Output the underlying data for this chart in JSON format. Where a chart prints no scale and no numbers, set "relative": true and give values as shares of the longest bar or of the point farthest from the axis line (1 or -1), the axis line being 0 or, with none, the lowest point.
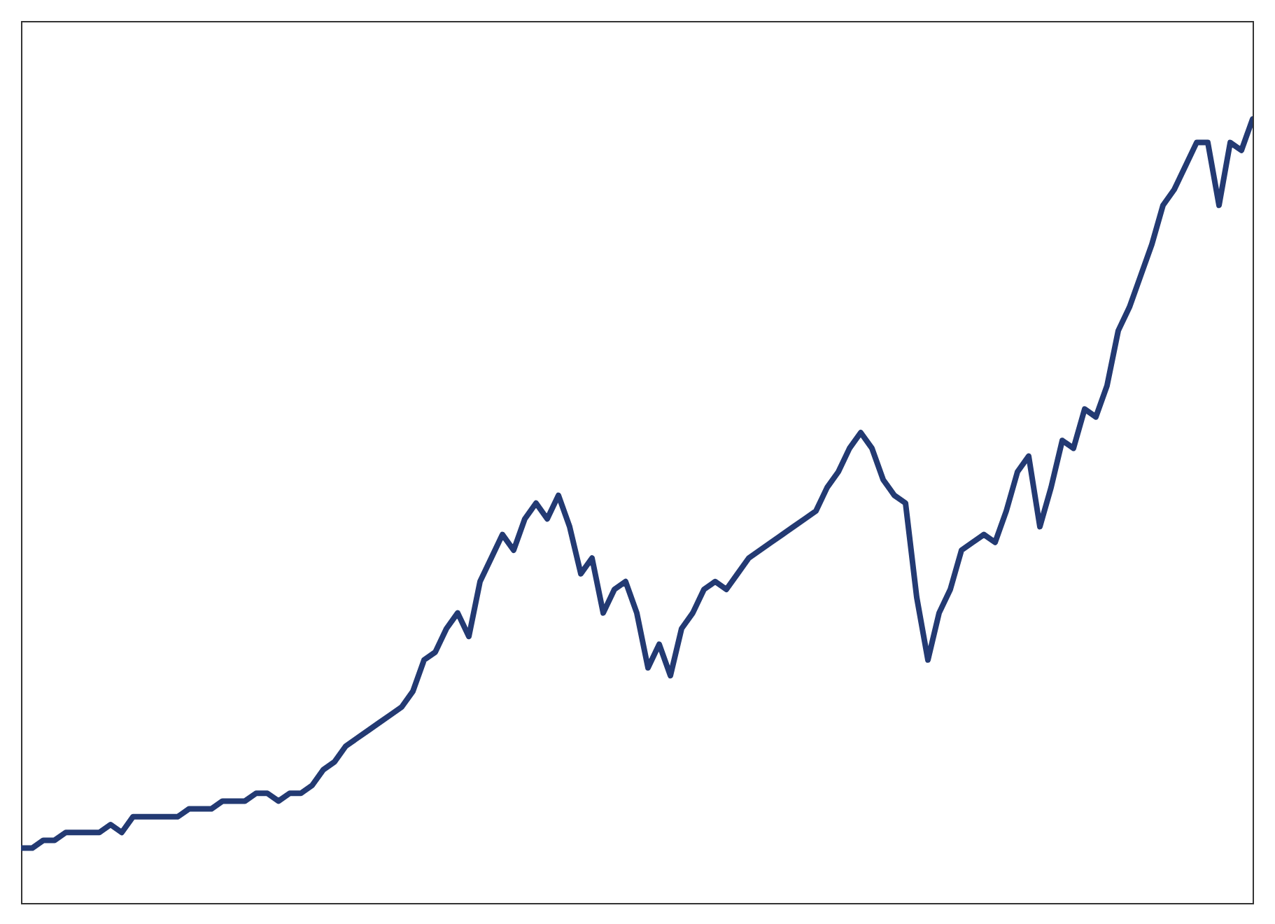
{
  "chart_data": {
    "type": "line",
    "relative": true,
    "categories": [
      null,
      null,
      null,
      null,
      null,
      null,
      null,
      null,
      null,
      null,
      null,
      null,
      null,
      null,
      null,
      null,
      null,
      null,
      null,
      null,
      null,
      null,
      null,
      null,
      null,
      null,
      null,
      null,
      null,
      null,
      null,
      null,
      null,
      null,
      null,
      null,
      null,
      null,
      null,
      null,
      null,
      null,
      null,
      null,
      null,
      null,
      null,
      null,
      null,
      null,
      null,
      null,
      null,
      null,
      null,
      null,
      null,
      null,
      null,
      null,
      null,
      null,
      null,
      null,
      null,
      null,
      null,
      null,
      null,
      null,
      null,
      null,
      null,
      null,
      null,
      null,
      null,
      null,
      null,
      null,
      null,
      null,
      null,
      null,
      null,
      null,
      null,
      null,
      null,
      null,
      null,
      null,
      null,
      null,
      null,
      null,
      null,
      null,
      null,
      null,
      null,
      null,
      null,
      null,
      null,
      null,
      null,
      null,
      null,
      null,
      null
    ],
    "series": [
      {
        "color": "#233a73",
        "values": [
          0.07,
          0.07,
          0.08,
          0.08,
          0.09,
          0.09,
          0.09,
          0.09,
          0.1,
          0.09,
          0.11,
          0.11,
          0.11,
          0.11,
          0.11,
          0.12,
          0.12,
          0.12,
          0.13,
          0.13,
          0.13,
          0.14,
          0.14,
          0.13,
          0.14,
          0.14,
          0.15,
          0.17,
          0.18,
          0.2,
          0.21,
          0.22,
          0.23,
          0.24,
          0.25,
          0.27,
          0.31,
          0.32,
          0.35,
          0.37,
          0.34,
          0.41,
          0.44,
          0.47,
          0.45,
          0.49,
          0.51,
          0.49,
          0.52,
          0.48,
          0.42,
          0.44,
          0.37,
          0.4,
          0.41,
          0.37,
          0.3,
          0.33,
          0.29,
          0.35,
          0.37,
          0.4,
          0.41,
          0.4,
          0.42,
          0.44,
          0.45,
          0.46,
          0.47,
          0.48,
          0.49,
          0.5,
          0.53,
          0.55,
          0.58,
          0.6,
          0.58,
          0.54,
          0.52,
          0.51,
          0.39,
          0.31,
          0.37,
          0.4,
          0.45,
          0.46,
          0.47,
          0.46,
          0.5,
          0.55,
          0.57,
          0.48,
          0.53,
          0.59,
          0.58,
          0.63,
          0.62,
          0.66,
          0.73,
          0.76,
          0.8,
          0.84,
          0.89,
          0.91,
          0.94,
          0.97,
          0.97,
          0.89,
          0.97,
          0.96,
          1
        ]
      }
    ],
    "line_style": "solid"
  }
}
